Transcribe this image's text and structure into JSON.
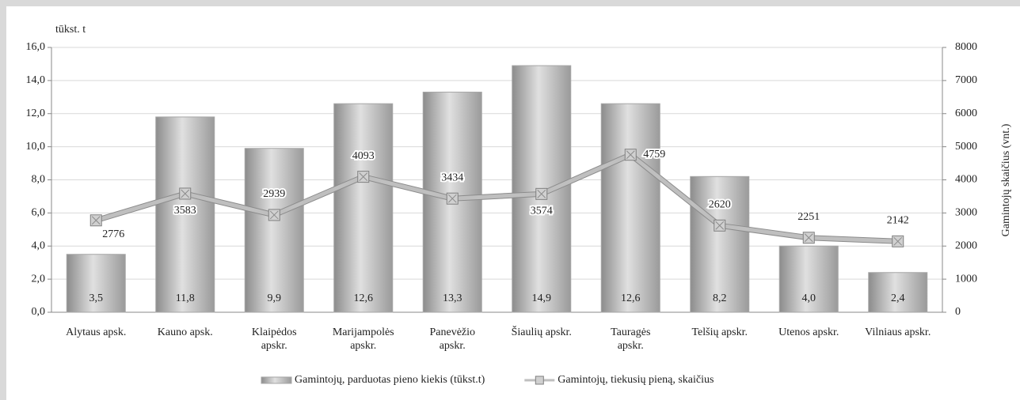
{
  "chart_data": {
    "type": "bar",
    "y_label": "tūkst. t",
    "y2_label": "Gamintojų skaičius (vnt.)",
    "categories": [
      "Alytaus apsk.",
      "Kauno apsk.",
      "Klaipėdos apskr.",
      "Marijampolės apskr.",
      "Panevėžio apskr.",
      "Šiaulių apskr.",
      "Tauragės apskr.",
      "Telšių apskr.",
      "Utenos apskr.",
      "Vilniaus apskr."
    ],
    "series": [
      {
        "name": "Gamintojų, parduotas pieno kiekis (tūkst.t)",
        "type": "bar",
        "color": "#a6a6a6",
        "values": [
          3.5,
          11.8,
          9.9,
          12.6,
          13.3,
          14.9,
          12.6,
          8.2,
          4.0,
          2.4
        ],
        "value_labels": [
          "3,5",
          "11,8",
          "9,9",
          "12,6",
          "13,3",
          "14,9",
          "12,6",
          "8,2",
          "4,0",
          "2,4"
        ]
      },
      {
        "name": "Gamintojų, tiekusių pieną, skaičius",
        "type": "line",
        "axis": "y2",
        "color": "#bfbfbf",
        "values": [
          2776,
          3583,
          2939,
          4093,
          3434,
          3574,
          4759,
          2620,
          2251,
          2142
        ]
      }
    ],
    "ylim": [
      0,
      16
    ],
    "yticks": [
      {
        "value": 0,
        "label": "0,0"
      },
      {
        "value": 2,
        "label": "2,0"
      },
      {
        "value": 4,
        "label": "4,0"
      },
      {
        "value": 6,
        "label": "6,0"
      },
      {
        "value": 8,
        "label": "8,0"
      },
      {
        "value": 10,
        "label": "10,0"
      },
      {
        "value": 12,
        "label": "12,0"
      },
      {
        "value": 14,
        "label": "14,0"
      },
      {
        "value": 16,
        "label": "16,0"
      }
    ],
    "y2lim": [
      0,
      8000
    ],
    "y2ticks": [
      0,
      1000,
      2000,
      3000,
      4000,
      5000,
      6000,
      7000,
      8000
    ],
    "grid": true,
    "legend": "bottom"
  }
}
